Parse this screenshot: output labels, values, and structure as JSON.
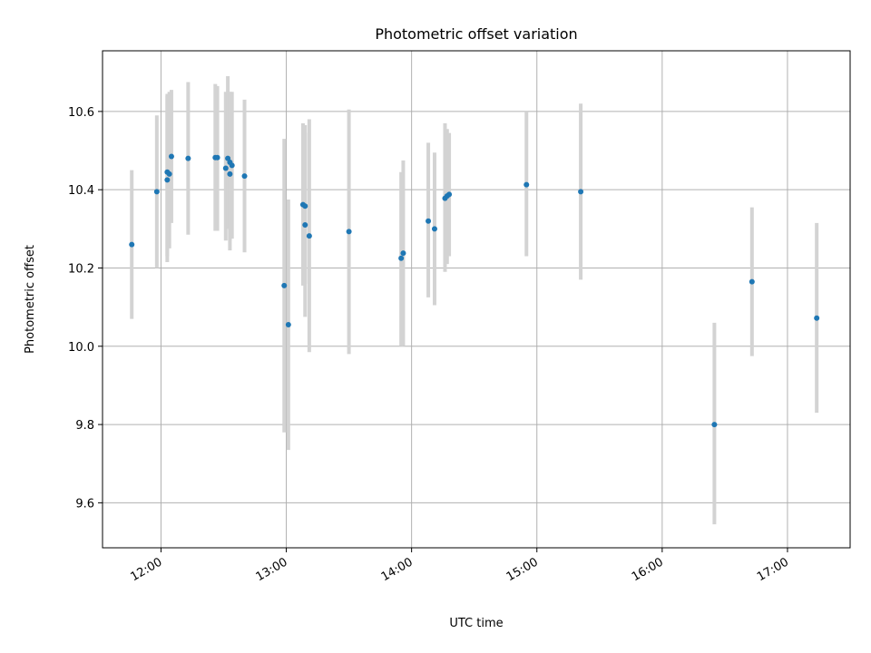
{
  "chart_data": {
    "type": "scatter",
    "title": "Photometric offset variation",
    "xlabel": "UTC time",
    "ylabel": "Photometric offset",
    "xlim": [
      "11:32",
      "17:30"
    ],
    "ylim": [
      9.485,
      10.755
    ],
    "grid": true,
    "x_ticks": [
      "12:00",
      "13:00",
      "14:00",
      "15:00",
      "16:00",
      "17:00"
    ],
    "y_ticks": [
      9.6,
      9.8,
      10.0,
      10.2,
      10.4,
      10.6
    ],
    "y_tick_labels": [
      "9.6",
      "9.8",
      "10.0",
      "10.2",
      "10.4",
      "10.6"
    ],
    "colors": {
      "point": "#1f77b4",
      "errorbar": "#d3d3d3",
      "grid": "#b0b0b0"
    },
    "points": [
      {
        "x": "11:46",
        "y": 10.26,
        "lo": 10.07,
        "hi": 10.45
      },
      {
        "x": "11:58",
        "y": 10.395,
        "lo": 10.2,
        "hi": 10.59
      },
      {
        "x": "12:03",
        "y": 10.425,
        "lo": 10.215,
        "hi": 10.64
      },
      {
        "x": "12:03",
        "y": 10.445,
        "lo": 10.23,
        "hi": 10.645
      },
      {
        "x": "12:04",
        "y": 10.44,
        "lo": 10.25,
        "hi": 10.65
      },
      {
        "x": "12:05",
        "y": 10.485,
        "lo": 10.315,
        "hi": 10.655
      },
      {
        "x": "12:13",
        "y": 10.48,
        "lo": 10.285,
        "hi": 10.675
      },
      {
        "x": "12:26",
        "y": 10.482,
        "lo": 10.295,
        "hi": 10.67
      },
      {
        "x": "12:27",
        "y": 10.482,
        "lo": 10.295,
        "hi": 10.665
      },
      {
        "x": "12:31",
        "y": 10.455,
        "lo": 10.27,
        "hi": 10.65
      },
      {
        "x": "12:32",
        "y": 10.48,
        "lo": 10.3,
        "hi": 10.69
      },
      {
        "x": "12:33",
        "y": 10.44,
        "lo": 10.245,
        "hi": 10.63
      },
      {
        "x": "12:33",
        "y": 10.47,
        "lo": 10.27,
        "hi": 10.65
      },
      {
        "x": "12:34",
        "y": 10.462,
        "lo": 10.275,
        "hi": 10.65
      },
      {
        "x": "12:40",
        "y": 10.435,
        "lo": 10.24,
        "hi": 10.63
      },
      {
        "x": "12:59",
        "y": 10.155,
        "lo": 9.78,
        "hi": 10.53
      },
      {
        "x": "13:01",
        "y": 10.055,
        "lo": 9.735,
        "hi": 10.375
      },
      {
        "x": "13:08",
        "y": 10.362,
        "lo": 10.155,
        "hi": 10.57
      },
      {
        "x": "13:09",
        "y": 10.358,
        "lo": 10.16,
        "hi": 10.565
      },
      {
        "x": "13:09",
        "y": 10.31,
        "lo": 10.075,
        "hi": 10.545
      },
      {
        "x": "13:11",
        "y": 10.282,
        "lo": 9.985,
        "hi": 10.58
      },
      {
        "x": "13:30",
        "y": 10.293,
        "lo": 9.98,
        "hi": 10.605
      },
      {
        "x": "13:55",
        "y": 10.225,
        "lo": 10.0,
        "hi": 10.445
      },
      {
        "x": "13:56",
        "y": 10.238,
        "lo": 10.0,
        "hi": 10.475
      },
      {
        "x": "14:08",
        "y": 10.32,
        "lo": 10.125,
        "hi": 10.52
      },
      {
        "x": "14:11",
        "y": 10.3,
        "lo": 10.105,
        "hi": 10.495
      },
      {
        "x": "14:16",
        "y": 10.378,
        "lo": 10.19,
        "hi": 10.57
      },
      {
        "x": "14:17",
        "y": 10.384,
        "lo": 10.21,
        "hi": 10.555
      },
      {
        "x": "14:18",
        "y": 10.388,
        "lo": 10.23,
        "hi": 10.545
      },
      {
        "x": "14:55",
        "y": 10.413,
        "lo": 10.23,
        "hi": 10.6
      },
      {
        "x": "15:21",
        "y": 10.395,
        "lo": 10.17,
        "hi": 10.62
      },
      {
        "x": "16:25",
        "y": 9.8,
        "lo": 9.545,
        "hi": 10.06
      },
      {
        "x": "16:43",
        "y": 10.165,
        "lo": 9.975,
        "hi": 10.355
      },
      {
        "x": "17:14",
        "y": 10.072,
        "lo": 9.83,
        "hi": 10.315
      }
    ]
  }
}
